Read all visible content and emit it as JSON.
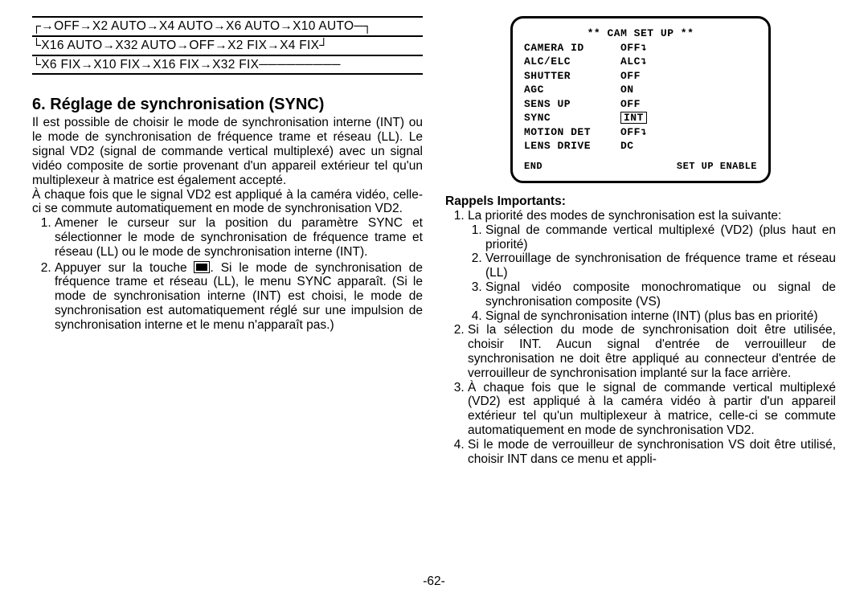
{
  "flow": {
    "line1": [
      "OFF",
      "X2 AUTO",
      "X4 AUTO",
      "X6 AUTO",
      "X10 AUTO"
    ],
    "line2": [
      "X16 AUTO",
      "X32 AUTO",
      "OFF",
      "X2 FIX",
      "X4 FIX"
    ],
    "line3": [
      "X6 FIX",
      "X10 FIX",
      "X16 FIX",
      "X32 FIX"
    ]
  },
  "section": {
    "title": "6. Réglage de synchronisation (SYNC)",
    "para1": "Il est possible de choisir le mode de synchronisation interne (INT) ou le mode de synchronisation de fréquence trame et réseau (LL). Le signal VD2 (signal de commande vertical multiplexé) avec un signal vidéo composite de sortie provenant d'un appareil extérieur tel qu'un multiplexeur à matrice est également accepté.",
    "para2": "À chaque fois que le signal VD2 est appliqué à la caméra vidéo, celle-ci se commute automatiquement en mode de synchronisation VD2.",
    "steps": [
      "Amener le curseur sur la position du paramètre SYNC et sélectionner le mode de synchronisation de fréquence trame et réseau (LL) ou le mode de synchronisation interne (INT).",
      "Appuyer sur la touche "
    ],
    "step2_rest": ".\nSi le mode de synchronisation de fréquence trame et réseau (LL), le menu SYNC apparaît. (Si le mode de synchronisation interne (INT) est choisi, le mode de synchronisation est automatiquement réglé sur une impulsion de synchronisation interne et le menu n'apparaît pas.)"
  },
  "camsetup": {
    "title": "** CAM SET UP **",
    "rows": [
      {
        "k": "CAMERA ID",
        "v": "OFF",
        "cur": "↴"
      },
      {
        "k": "ALC/ELC",
        "v": "ALC",
        "cur": "↴"
      },
      {
        "k": "SHUTTER",
        "v": "OFF",
        "cur": ""
      },
      {
        "k": "AGC",
        "v": "ON",
        "cur": ""
      },
      {
        "k": "SENS UP",
        "v": "OFF",
        "cur": ""
      },
      {
        "k": "SYNC",
        "v": "INT",
        "boxed": true,
        "cur": ""
      },
      {
        "k": "MOTION DET",
        "v": "OFF",
        "cur": "↴"
      },
      {
        "k": "LENS DRIVE",
        "v": "DC",
        "cur": ""
      }
    ],
    "foot_left": "END",
    "foot_right": "SET UP ENABLE"
  },
  "rappels": {
    "title": "Rappels Importants:",
    "item1": "La priorité des modes de synchronisation est la suivante:",
    "sub": [
      "Signal de commande vertical multiplexé (VD2) (plus haut en priorité)",
      "Verrouillage de synchronisation de fréquence trame et réseau (LL)",
      "Signal vidéo composite monochromatique ou signal de synchronisation composite (VS)",
      "Signal de synchronisation interne (INT) (plus bas en priorité)"
    ],
    "item2": "Si la sélection du mode de synchronisation doit être utilisée, choisir INT. Aucun signal d'entrée de verrouilleur de synchronisation ne doit être appliqué au connecteur d'entrée de verrouilleur de synchronisation implanté sur la face arrière.",
    "item3": "À chaque fois que le signal de commande vertical multiplexé (VD2) est appliqué à la caméra vidéo à partir d'un appareil extérieur tel qu'un multiplexeur à matrice, celle-ci se commute automatiquement en mode de synchronisation VD2.",
    "item4": "Si le mode de verrouilleur de synchronisation VS doit être utilisé, choisir INT dans ce menu et appli-"
  },
  "pagenum": "-62-",
  "colors": {
    "text": "#000000",
    "bg": "#ffffff",
    "border": "#000000"
  },
  "typography": {
    "body_fontsize_pt": 11,
    "heading_fontsize_pt": 15,
    "mono_fontsize_pt": 10,
    "font_family": "Arial",
    "mono_family": "Courier New"
  }
}
